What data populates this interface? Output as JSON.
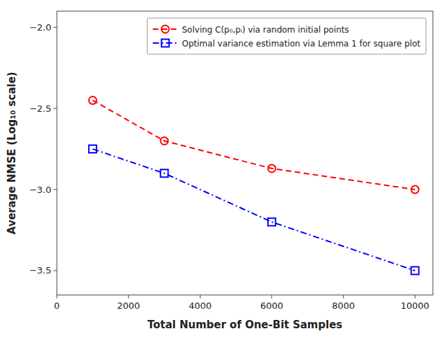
{
  "chart_data": {
    "type": "line",
    "x_label": "Total Number of One-Bit Samples",
    "y_label": "Average NMSE (Log₁₀ scale)",
    "xlim": [
      0,
      10500
    ],
    "ylim": [
      -3.65,
      -1.9
    ],
    "xticks": [
      0,
      2000,
      4000,
      6000,
      8000,
      10000
    ],
    "yticks": [
      {
        "value": -3.5,
        "label": "−3.5"
      },
      {
        "value": -3.0,
        "label": "−3.0"
      },
      {
        "value": -2.5,
        "label": "−2.5"
      },
      {
        "value": -2.0,
        "label": "−2.0"
      }
    ],
    "grid": false,
    "legend": "upper right",
    "series": [
      {
        "name": "Solving C(p₀,pₗ) via random initial points",
        "color": "#FF0000",
        "marker": "circle",
        "line_style": "dashed",
        "x": [
          1000,
          3000,
          6000,
          10000
        ],
        "values": [
          -2.45,
          -2.7,
          -2.87,
          -3.0
        ]
      },
      {
        "name": "Optimal variance estimation via Lemma 1 for square plot",
        "color": "#0000FF",
        "marker": "square",
        "line_style": "dashdot",
        "x": [
          1000,
          3000,
          6000,
          10000
        ],
        "values": [
          -2.75,
          -2.9,
          -3.2,
          -3.5
        ]
      }
    ]
  }
}
